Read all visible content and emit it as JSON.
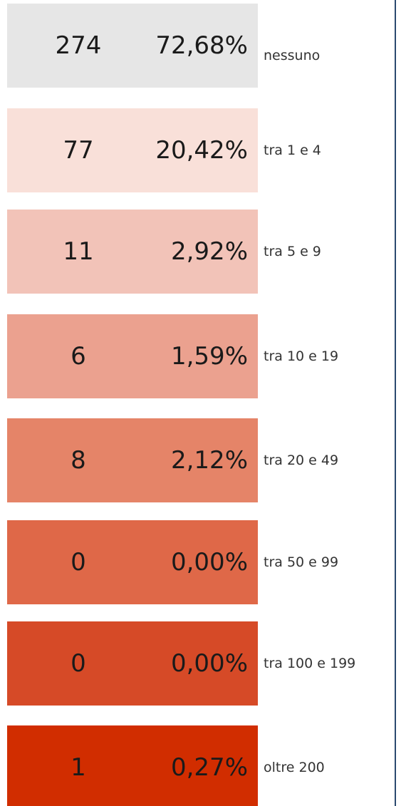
{
  "rows": [
    {
      "count": 274,
      "percent": "72,68%",
      "label": "nessuno",
      "color": "#e6e6e6"
    },
    {
      "count": 77,
      "percent": "20,42%",
      "label": "tra 1 e 4",
      "color": "#f9e0d9"
    },
    {
      "count": 11,
      "percent": "2,92%",
      "label": "tra 5 e 9",
      "color": "#f2c3b8"
    },
    {
      "count": 6,
      "percent": "1,59%",
      "label": "tra 10 e 19",
      "color": "#eba18f"
    },
    {
      "count": 8,
      "percent": "2,12%",
      "label": "tra 20 e 49",
      "color": "#e58468"
    },
    {
      "count": 0,
      "percent": "0,00%",
      "label": "tra 50 e 99",
      "color": "#df6848"
    },
    {
      "count": 0,
      "percent": "0,00%",
      "label": "tra 100 e 199",
      "color": "#d64a27"
    },
    {
      "count": 1,
      "percent": "0,27%",
      "label": "oltre 200",
      "color": "#d12d00"
    }
  ]
}
